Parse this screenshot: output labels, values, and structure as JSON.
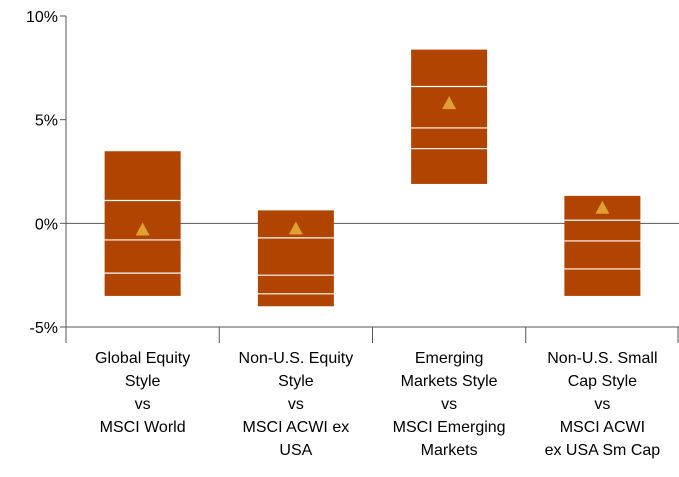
{
  "chart_data": {
    "type": "box",
    "title": "",
    "xlabel": "",
    "ylabel": "",
    "ylim": [
      -5,
      10
    ],
    "yticks": [
      10,
      5,
      0,
      -5
    ],
    "ytick_labels": [
      "10%",
      "5%",
      "0%",
      "-5%"
    ],
    "grid": false,
    "categories": [
      [
        "Global Equity",
        "Style",
        "vs",
        "MSCI World"
      ],
      [
        "Non-U.S. Equity",
        "Style",
        "vs",
        "MSCI ACWI ex",
        "USA"
      ],
      [
        "Emerging",
        "Markets Style",
        "vs",
        "MSCI Emerging",
        "Markets"
      ],
      [
        "Non-U.S. Small",
        "Cap Style",
        "vs",
        "MSCI ACWI",
        "ex USA Sm Cap"
      ]
    ],
    "boxes": [
      {
        "top": 3.5,
        "lines": [
          1.1,
          -0.8,
          -2.4
        ],
        "bottom": -3.5,
        "marker": -0.3
      },
      {
        "top": 0.65,
        "lines": [
          -0.7,
          -2.5,
          -3.4
        ],
        "bottom": -4.0,
        "marker": -0.25
      },
      {
        "top": 8.4,
        "lines": [
          6.6,
          4.6,
          3.6
        ],
        "bottom": 1.9,
        "marker": 5.8
      },
      {
        "top": 1.35,
        "lines": [
          0.15,
          -0.85,
          -2.2
        ],
        "bottom": -3.5,
        "marker": 0.75
      }
    ],
    "colors": {
      "box": "#b04400",
      "marker": "#e0a030",
      "line": "#ffffff",
      "axis": "#555555"
    }
  }
}
